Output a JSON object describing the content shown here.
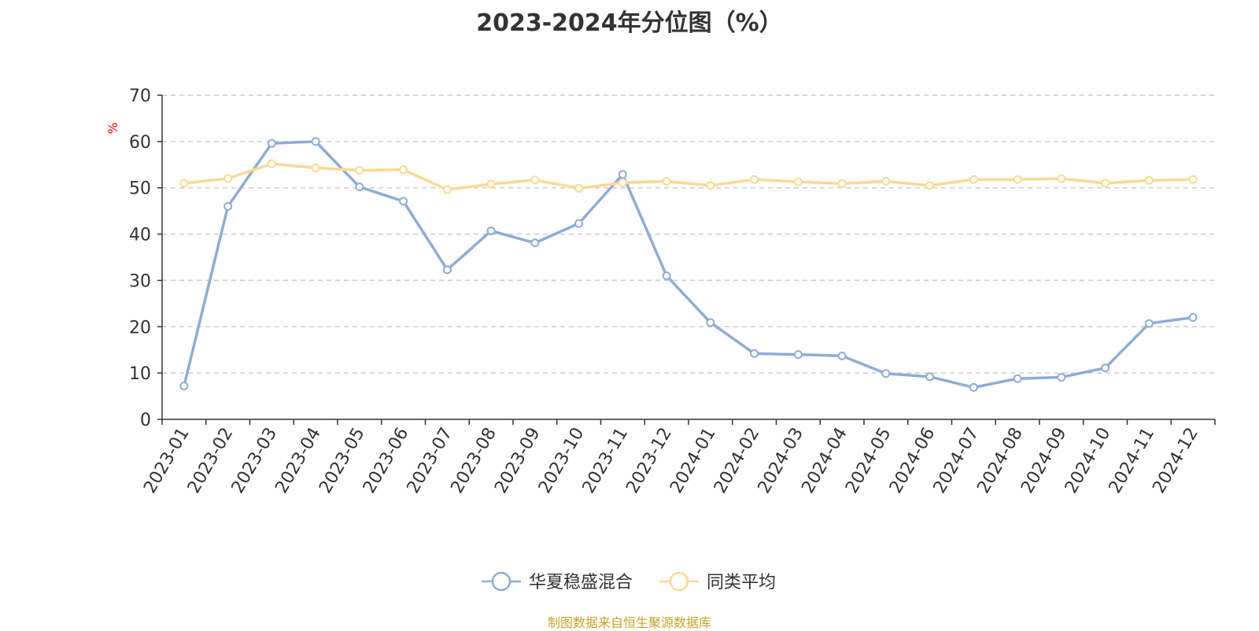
{
  "title": "2023-2024年分位图（%）",
  "footer": "制图数据来自恒生聚源数据库",
  "chart_data": {
    "type": "line",
    "title": "2023-2024年分位图（%）",
    "xlabel": "",
    "ylabel": "%",
    "ylabel_color": "#ff0000",
    "ylim": [
      0,
      70
    ],
    "yticks": [
      0,
      10,
      20,
      30,
      40,
      50,
      60,
      70
    ],
    "grid": true,
    "legend_position": "bottom-center",
    "categories": [
      "2023-01",
      "2023-02",
      "2023-03",
      "2023-04",
      "2023-05",
      "2023-06",
      "2023-07",
      "2023-08",
      "2023-09",
      "2023-10",
      "2023-11",
      "2023-12",
      "2024-01",
      "2024-02",
      "2024-03",
      "2024-04",
      "2024-05",
      "2024-06",
      "2024-07",
      "2024-08",
      "2024-09",
      "2024-10",
      "2024-11",
      "2024-12"
    ],
    "series": [
      {
        "name": "华夏稳盛混合",
        "color": "#8eacd8",
        "values": [
          7.2,
          46.0,
          59.6,
          60.0,
          50.2,
          47.1,
          32.3,
          40.7,
          38.1,
          42.3,
          52.9,
          31.0,
          20.9,
          14.2,
          14.0,
          13.7,
          9.9,
          9.2,
          6.9,
          8.8,
          9.1,
          11.1,
          20.7,
          22.0
        ]
      },
      {
        "name": "同类平均",
        "color": "#fcd991",
        "values": [
          51.0,
          52.0,
          55.2,
          54.3,
          53.8,
          53.9,
          49.6,
          50.8,
          51.7,
          49.9,
          51.1,
          51.4,
          50.5,
          51.8,
          51.3,
          50.9,
          51.4,
          50.5,
          51.8,
          51.8,
          52.0,
          51.0,
          51.6,
          51.8
        ]
      }
    ]
  }
}
